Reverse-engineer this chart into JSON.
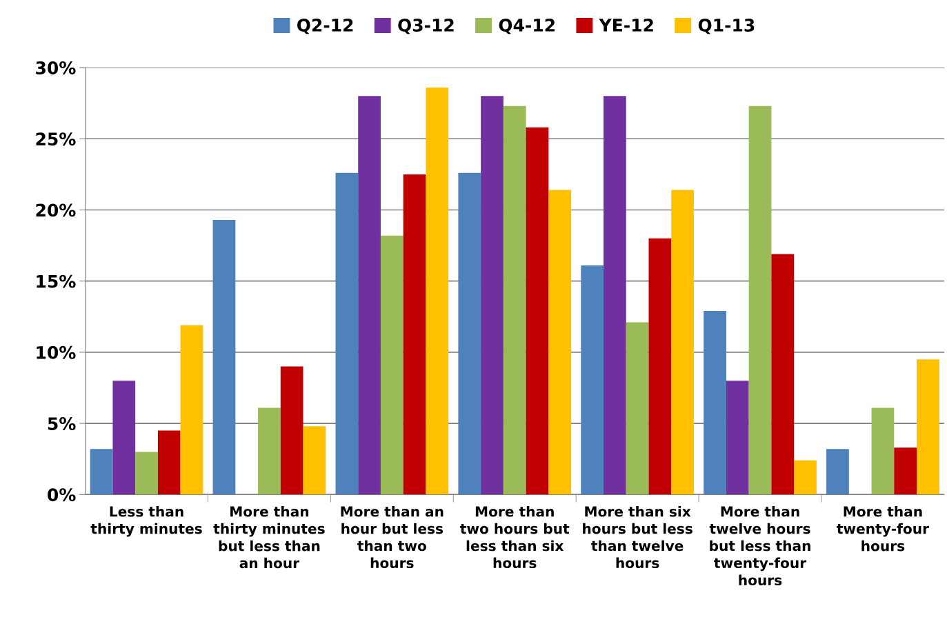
{
  "chart_data": {
    "type": "bar",
    "categories": [
      "Less than\nthirty minutes",
      "More than\nthirty minutes\nbut less than\nan hour",
      "More than an\nhour but less\nthan two\nhours",
      "More than\ntwo hours but\nless than six\nhours",
      "More than six\nhours but less\nthan twelve\nhours",
      "More than\ntwelve hours\nbut less than\ntwenty-four\nhours",
      "More than\ntwenty-four\nhours"
    ],
    "series": [
      {
        "name": "Q2-12",
        "color": "#4f81bd",
        "values": [
          3.2,
          19.3,
          22.6,
          22.6,
          16.1,
          12.9,
          3.2
        ]
      },
      {
        "name": "Q3-12",
        "color": "#7030a0",
        "values": [
          8.0,
          0,
          28.0,
          28.0,
          28.0,
          8.0,
          0
        ]
      },
      {
        "name": "Q4-12",
        "color": "#9bbb59",
        "values": [
          3.0,
          6.1,
          18.2,
          27.3,
          12.1,
          27.3,
          6.1
        ]
      },
      {
        "name": "YE-12",
        "color": "#c00000",
        "values": [
          4.5,
          9.0,
          22.5,
          25.8,
          18.0,
          16.9,
          3.3
        ]
      },
      {
        "name": "Q1-13",
        "color": "#ffc000",
        "values": [
          11.9,
          4.8,
          28.6,
          21.4,
          21.4,
          2.4,
          9.5
        ]
      }
    ],
    "ylim": [
      0,
      30
    ],
    "yticks": [
      {
        "value": 0,
        "label": "0%"
      },
      {
        "value": 5,
        "label": "5%"
      },
      {
        "value": 10,
        "label": "10%"
      },
      {
        "value": 15,
        "label": "15%"
      },
      {
        "value": 20,
        "label": "20%"
      },
      {
        "value": 25,
        "label": "25%"
      },
      {
        "value": 30,
        "label": "30%"
      }
    ],
    "grid": "y",
    "legend": "top"
  }
}
